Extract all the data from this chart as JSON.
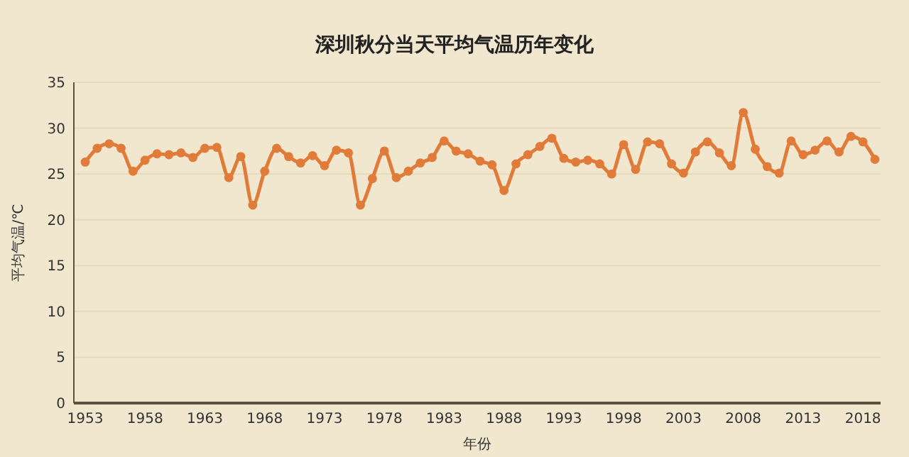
{
  "chart_data": {
    "type": "line",
    "title": "深圳秋分当天平均气温历年变化",
    "xlabel": "年份",
    "ylabel": "平均气温/℃",
    "categories": [
      "1953",
      null,
      null,
      null,
      null,
      "1958",
      null,
      null,
      null,
      null,
      "1963",
      null,
      null,
      null,
      null,
      "1968",
      null,
      null,
      null,
      null,
      "1973",
      null,
      null,
      null,
      null,
      "1978",
      null,
      null,
      null,
      null,
      "1983",
      null,
      null,
      null,
      null,
      "1988",
      null,
      null,
      null,
      null,
      "1993",
      null,
      null,
      null,
      null,
      "1998",
      null,
      null,
      null,
      null,
      "2003",
      null,
      null,
      null,
      null,
      "2008",
      null,
      null,
      null,
      null,
      "2013",
      null,
      null,
      null,
      null,
      "2018",
      null
    ],
    "series": [
      {
        "color": "#e07b39",
        "values": [
          26.3,
          27.8,
          28.3,
          27.8,
          25.3,
          26.5,
          27.2,
          27.1,
          27.3,
          26.8,
          27.8,
          27.9,
          24.6,
          26.9,
          21.6,
          25.3,
          27.8,
          26.9,
          26.2,
          27.0,
          25.9,
          27.6,
          27.3,
          21.6,
          24.5,
          27.5,
          24.6,
          25.3,
          26.2,
          26.8,
          28.6,
          27.5,
          27.2,
          26.4,
          26.0,
          23.2,
          26.1,
          27.1,
          28.0,
          28.9,
          26.7,
          26.3,
          26.5,
          26.1,
          25.0,
          28.2,
          25.5,
          28.5,
          28.3,
          26.1,
          25.1,
          27.4,
          28.5,
          27.3,
          25.9,
          31.7,
          27.7,
          25.8,
          25.1,
          28.6,
          27.1,
          27.6,
          28.6,
          27.4,
          29.1,
          28.5,
          26.6
        ]
      }
    ],
    "ylim": [
      0,
      35
    ],
    "yticks": [
      0,
      5,
      10,
      15,
      20,
      25,
      30,
      35
    ],
    "grid": "y",
    "marker": "circle",
    "line_style": "solid"
  }
}
